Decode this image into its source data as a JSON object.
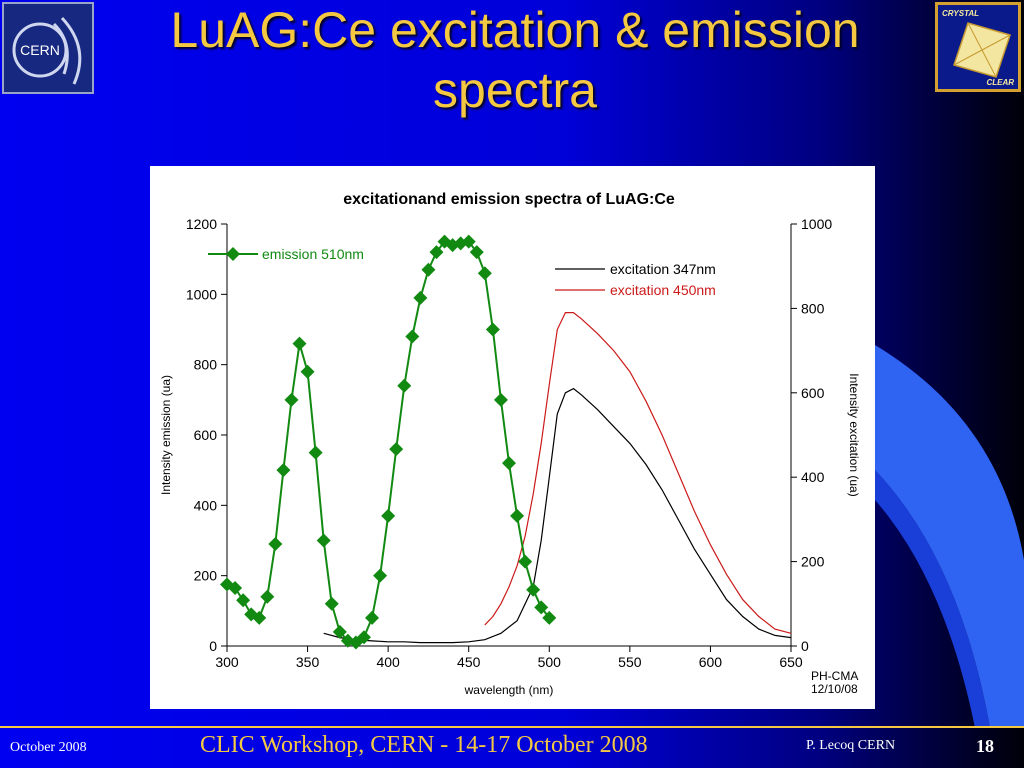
{
  "slide": {
    "title": "LuAG:Ce excitation & emission spectra",
    "footer_date": "October 2008",
    "footer_center": "CLIC Workshop, CERN - 14-17 October 2008",
    "footer_author": "P. Lecoq  CERN",
    "page_number": "18"
  },
  "logos": {
    "left_text": "CERN",
    "right_top": "CRYSTAL",
    "right_bottom": "CLEAR"
  },
  "colors": {
    "title": "#f5c842",
    "background_blue": "#0000e0",
    "emission": "#128a12",
    "excitation_347": "#000000",
    "excitation_450": "#cc1a1a"
  },
  "chart_data": {
    "type": "line",
    "title": "excitationand emission spectra of LuAG:Ce",
    "xlabel": "wavelength (nm)",
    "ylabel_left": "Intensity emission (ua)",
    "ylabel_right": "Intensity excitation (ua)",
    "xlim": [
      300,
      650
    ],
    "ylim_left": [
      0,
      1200
    ],
    "ylim_right": [
      0,
      1000
    ],
    "x_ticks": [
      "300",
      "350",
      "400",
      "450",
      "500",
      "550",
      "600",
      "650"
    ],
    "y_ticks_left": [
      "0",
      "200",
      "400",
      "600",
      "800",
      "1000",
      "1200"
    ],
    "y_ticks_right": [
      "0",
      "200",
      "400",
      "600",
      "800",
      "1000"
    ],
    "grid": false,
    "legend": "top-left and top-right",
    "stamp": [
      "PH-CMA",
      "12/10/08"
    ],
    "series": [
      {
        "name": "emission 510nm",
        "axis": "left",
        "marker": "diamond",
        "x": [
          300,
          305,
          310,
          315,
          320,
          325,
          330,
          335,
          340,
          345,
          350,
          355,
          360,
          365,
          370,
          375,
          380,
          385,
          390,
          395,
          400,
          405,
          410,
          415,
          420,
          425,
          430,
          435,
          440,
          445,
          450,
          455,
          460,
          465,
          470,
          475,
          480,
          485,
          490,
          495,
          500
        ],
        "y": [
          175,
          165,
          130,
          90,
          80,
          140,
          290,
          500,
          700,
          860,
          780,
          550,
          300,
          120,
          40,
          15,
          10,
          25,
          80,
          200,
          370,
          560,
          740,
          880,
          990,
          1070,
          1120,
          1150,
          1140,
          1145,
          1150,
          1120,
          1060,
          900,
          700,
          520,
          370,
          240,
          160,
          110,
          80
        ]
      },
      {
        "name": "excitation 347nm",
        "axis": "right",
        "marker": "none",
        "x": [
          360,
          370,
          380,
          390,
          400,
          410,
          420,
          430,
          440,
          450,
          460,
          470,
          480,
          490,
          495,
          500,
          505,
          510,
          515,
          520,
          530,
          540,
          550,
          560,
          570,
          580,
          590,
          600,
          610,
          620,
          630,
          640,
          650
        ],
        "y": [
          30,
          20,
          15,
          12,
          10,
          10,
          8,
          8,
          8,
          10,
          15,
          30,
          60,
          140,
          250,
          400,
          550,
          600,
          610,
          595,
          560,
          520,
          480,
          430,
          370,
          300,
          230,
          170,
          110,
          70,
          40,
          25,
          20
        ]
      },
      {
        "name": "excitation 450nm",
        "axis": "right",
        "marker": "none",
        "x": [
          460,
          465,
          470,
          475,
          480,
          485,
          490,
          495,
          500,
          505,
          510,
          515,
          520,
          530,
          540,
          550,
          560,
          570,
          580,
          590,
          600,
          610,
          620,
          630,
          640,
          650
        ],
        "y": [
          50,
          70,
          100,
          140,
          190,
          260,
          360,
          480,
          620,
          750,
          790,
          790,
          775,
          740,
          700,
          650,
          580,
          500,
          410,
          320,
          240,
          170,
          110,
          70,
          40,
          30
        ]
      }
    ]
  }
}
